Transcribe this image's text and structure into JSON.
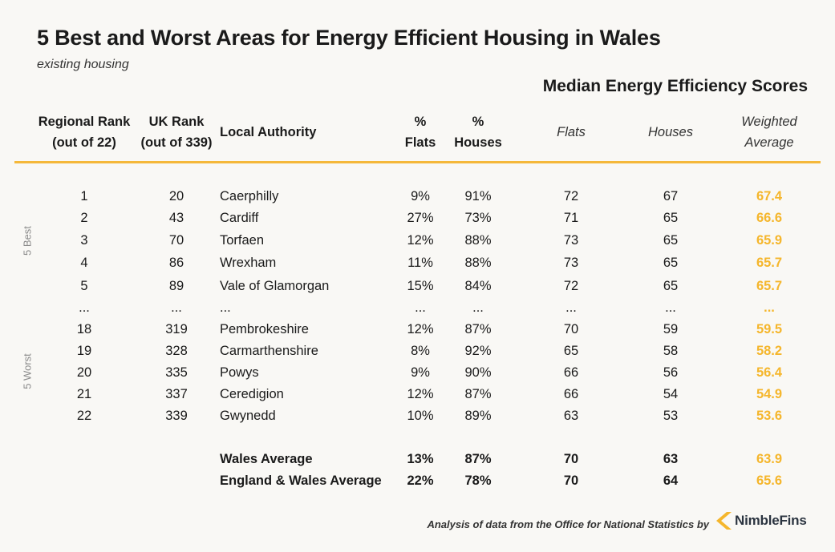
{
  "title": "5 Best and Worst Areas for Energy Efficient Housing in Wales",
  "subtitle": "existing housing",
  "group_header": "Median Energy Efficiency Scores",
  "headers": {
    "regional_rank": [
      "Regional Rank",
      "(out of 22)"
    ],
    "uk_rank": [
      "UK Rank",
      "(out of 339)"
    ],
    "local_authority": "Local Authority",
    "pct_flats": [
      "%",
      "Flats"
    ],
    "pct_houses": [
      "%",
      "Houses"
    ],
    "flats": "Flats",
    "houses": "Houses",
    "weighted_average": [
      "Weighted",
      "Average"
    ]
  },
  "side_labels": {
    "best": "5 Best",
    "worst": "5 Worst"
  },
  "colors": {
    "accent": "#f5b62c",
    "rule": "#f5b83a",
    "side_label": "#8a8a8a"
  },
  "chart_data": {
    "type": "table",
    "columns": [
      "Regional Rank (out of 22)",
      "UK Rank (out of 339)",
      "Local Authority",
      "% Flats",
      "% Houses",
      "Flats",
      "Houses",
      "Weighted Average"
    ],
    "rows": [
      {
        "regional_rank": "1",
        "uk_rank": "20",
        "local_authority": "Caerphilly",
        "pct_flats": "9%",
        "pct_houses": "91%",
        "flats": "72",
        "houses": "67",
        "weighted_average": "67.4"
      },
      {
        "regional_rank": "2",
        "uk_rank": "43",
        "local_authority": "Cardiff",
        "pct_flats": "27%",
        "pct_houses": "73%",
        "flats": "71",
        "houses": "65",
        "weighted_average": "66.6"
      },
      {
        "regional_rank": "3",
        "uk_rank": "70",
        "local_authority": "Torfaen",
        "pct_flats": "12%",
        "pct_houses": "88%",
        "flats": "73",
        "houses": "65",
        "weighted_average": "65.9"
      },
      {
        "regional_rank": "4",
        "uk_rank": "86",
        "local_authority": "Wrexham",
        "pct_flats": "11%",
        "pct_houses": "88%",
        "flats": "73",
        "houses": "65",
        "weighted_average": "65.7"
      },
      {
        "regional_rank": "5",
        "uk_rank": "89",
        "local_authority": "Vale of Glamorgan",
        "pct_flats": "15%",
        "pct_houses": "84%",
        "flats": "72",
        "houses": "65",
        "weighted_average": "65.7"
      },
      {
        "regional_rank": "...",
        "uk_rank": "...",
        "local_authority": "...",
        "pct_flats": "...",
        "pct_houses": "...",
        "flats": "...",
        "houses": "...",
        "weighted_average": "..."
      },
      {
        "regional_rank": "18",
        "uk_rank": "319",
        "local_authority": "Pembrokeshire",
        "pct_flats": "12%",
        "pct_houses": "87%",
        "flats": "70",
        "houses": "59",
        "weighted_average": "59.5"
      },
      {
        "regional_rank": "19",
        "uk_rank": "328",
        "local_authority": "Carmarthenshire",
        "pct_flats": "8%",
        "pct_houses": "92%",
        "flats": "65",
        "houses": "58",
        "weighted_average": "58.2"
      },
      {
        "regional_rank": "20",
        "uk_rank": "335",
        "local_authority": "Powys",
        "pct_flats": "9%",
        "pct_houses": "90%",
        "flats": "66",
        "houses": "56",
        "weighted_average": "56.4"
      },
      {
        "regional_rank": "21",
        "uk_rank": "337",
        "local_authority": "Ceredigion",
        "pct_flats": "12%",
        "pct_houses": "87%",
        "flats": "66",
        "houses": "54",
        "weighted_average": "54.9"
      },
      {
        "regional_rank": "22",
        "uk_rank": "339",
        "local_authority": "Gwynedd",
        "pct_flats": "10%",
        "pct_houses": "89%",
        "flats": "63",
        "houses": "53",
        "weighted_average": "53.6"
      }
    ],
    "summary_rows": [
      {
        "regional_rank": "",
        "uk_rank": "",
        "local_authority": "Wales Average",
        "pct_flats": "13%",
        "pct_houses": "87%",
        "flats": "70",
        "houses": "63",
        "weighted_average": "63.9"
      },
      {
        "regional_rank": "",
        "uk_rank": "",
        "local_authority": "England & Wales Average",
        "pct_flats": "22%",
        "pct_houses": "78%",
        "flats": "70",
        "houses": "64",
        "weighted_average": "65.6"
      }
    ]
  },
  "footer": {
    "credit": "Analysis of data from the Office for National Statistics by",
    "brand": "NimbleFins"
  }
}
